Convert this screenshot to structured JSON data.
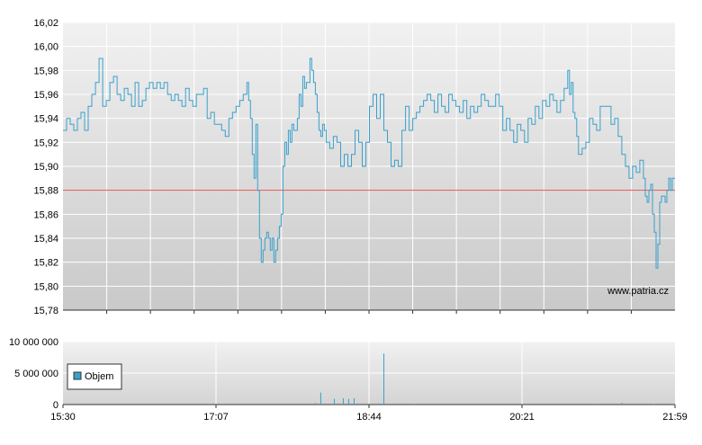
{
  "chart_data": [
    {
      "type": "line",
      "ylim": [
        15.78,
        16.02
      ],
      "y_ticks": [
        "16,02",
        "16,00",
        "15,98",
        "15,96",
        "15,94",
        "15,92",
        "15,90",
        "15,88",
        "15,86",
        "15,84",
        "15,82",
        "15,80",
        "15,78"
      ],
      "reference_line": {
        "value": 15.88,
        "color": "#e05050"
      },
      "line_color": "#3aa0cc",
      "watermark": "www.patria.cz",
      "grid": true,
      "series": [
        {
          "points": [
            [
              0,
              15.93
            ],
            [
              4,
              15.94
            ],
            [
              8,
              15.935
            ],
            [
              12,
              15.93
            ],
            [
              16,
              15.94
            ],
            [
              20,
              15.945
            ],
            [
              24,
              15.93
            ],
            [
              28,
              15.95
            ],
            [
              32,
              15.96
            ],
            [
              36,
              15.97
            ],
            [
              40,
              15.99
            ],
            [
              44,
              15.95
            ],
            [
              48,
              15.955
            ],
            [
              52,
              15.97
            ],
            [
              56,
              15.975
            ],
            [
              60,
              15.96
            ],
            [
              64,
              15.955
            ],
            [
              68,
              15.965
            ],
            [
              72,
              15.96
            ],
            [
              76,
              15.95
            ],
            [
              80,
              15.97
            ],
            [
              84,
              15.95
            ],
            [
              88,
              15.955
            ],
            [
              92,
              15.965
            ],
            [
              96,
              15.97
            ],
            [
              100,
              15.965
            ],
            [
              104,
              15.97
            ],
            [
              108,
              15.965
            ],
            [
              112,
              15.97
            ],
            [
              116,
              15.96
            ],
            [
              120,
              15.955
            ],
            [
              124,
              15.96
            ],
            [
              128,
              15.955
            ],
            [
              132,
              15.95
            ],
            [
              136,
              15.965
            ],
            [
              140,
              15.955
            ],
            [
              144,
              15.95
            ],
            [
              148,
              15.96
            ],
            [
              152,
              15.96
            ],
            [
              156,
              15.965
            ],
            [
              160,
              15.94
            ],
            [
              164,
              15.945
            ],
            [
              168,
              15.935
            ],
            [
              172,
              15.935
            ],
            [
              176,
              15.93
            ],
            [
              180,
              15.925
            ],
            [
              184,
              15.94
            ],
            [
              188,
              15.945
            ],
            [
              192,
              15.95
            ],
            [
              196,
              15.955
            ],
            [
              200,
              15.96
            ],
            [
              204,
              15.97
            ],
            [
              206,
              15.955
            ],
            [
              208,
              15.94
            ],
            [
              210,
              15.91
            ],
            [
              212,
              15.89
            ],
            [
              214,
              15.935
            ],
            [
              216,
              15.88
            ],
            [
              218,
              15.84
            ],
            [
              220,
              15.82
            ],
            [
              222,
              15.83
            ],
            [
              224,
              15.84
            ],
            [
              226,
              15.845
            ],
            [
              228,
              15.84
            ],
            [
              230,
              15.83
            ],
            [
              232,
              15.84
            ],
            [
              234,
              15.82
            ],
            [
              236,
              15.83
            ],
            [
              238,
              15.84
            ],
            [
              240,
              15.85
            ],
            [
              242,
              15.86
            ],
            [
              244,
              15.9
            ],
            [
              246,
              15.92
            ],
            [
              248,
              15.91
            ],
            [
              250,
              15.93
            ],
            [
              252,
              15.92
            ],
            [
              254,
              15.935
            ],
            [
              256,
              15.93
            ],
            [
              258,
              15.93
            ],
            [
              260,
              15.94
            ],
            [
              262,
              15.96
            ],
            [
              264,
              15.95
            ],
            [
              266,
              15.975
            ],
            [
              268,
              15.965
            ],
            [
              270,
              15.97
            ],
            [
              272,
              15.97
            ],
            [
              274,
              15.99
            ],
            [
              276,
              15.98
            ],
            [
              278,
              15.97
            ],
            [
              280,
              15.96
            ],
            [
              282,
              15.945
            ],
            [
              284,
              15.93
            ],
            [
              286,
              15.925
            ],
            [
              288,
              15.935
            ],
            [
              290,
              15.93
            ],
            [
              292,
              15.92
            ],
            [
              296,
              15.915
            ],
            [
              300,
              15.925
            ],
            [
              304,
              15.92
            ],
            [
              308,
              15.9
            ],
            [
              312,
              15.91
            ],
            [
              316,
              15.9
            ],
            [
              320,
              15.91
            ],
            [
              324,
              15.93
            ],
            [
              328,
              15.92
            ],
            [
              332,
              15.9
            ],
            [
              336,
              15.92
            ],
            [
              340,
              15.95
            ],
            [
              344,
              15.96
            ],
            [
              348,
              15.94
            ],
            [
              352,
              15.96
            ],
            [
              356,
              15.93
            ],
            [
              360,
              15.92
            ],
            [
              364,
              15.9
            ],
            [
              368,
              15.905
            ],
            [
              372,
              15.9
            ],
            [
              376,
              15.93
            ],
            [
              380,
              15.95
            ],
            [
              384,
              15.93
            ],
            [
              388,
              15.94
            ],
            [
              392,
              15.945
            ],
            [
              396,
              15.95
            ],
            [
              400,
              15.955
            ],
            [
              404,
              15.96
            ],
            [
              408,
              15.955
            ],
            [
              412,
              15.945
            ],
            [
              416,
              15.96
            ],
            [
              420,
              15.95
            ],
            [
              424,
              15.945
            ],
            [
              428,
              15.96
            ],
            [
              432,
              15.955
            ],
            [
              436,
              15.95
            ],
            [
              440,
              15.945
            ],
            [
              444,
              15.955
            ],
            [
              448,
              15.94
            ],
            [
              452,
              15.95
            ],
            [
              456,
              15.945
            ],
            [
              460,
              15.95
            ],
            [
              464,
              15.96
            ],
            [
              468,
              15.955
            ],
            [
              472,
              15.95
            ],
            [
              476,
              15.95
            ],
            [
              480,
              15.96
            ],
            [
              484,
              15.95
            ],
            [
              488,
              15.93
            ],
            [
              492,
              15.94
            ],
            [
              496,
              15.93
            ],
            [
              500,
              15.92
            ],
            [
              504,
              15.935
            ],
            [
              508,
              15.93
            ],
            [
              512,
              15.92
            ],
            [
              516,
              15.94
            ],
            [
              520,
              15.935
            ],
            [
              524,
              15.95
            ],
            [
              528,
              15.94
            ],
            [
              532,
              15.955
            ],
            [
              536,
              15.95
            ],
            [
              540,
              15.96
            ],
            [
              544,
              15.955
            ],
            [
              548,
              15.945
            ],
            [
              552,
              15.955
            ],
            [
              556,
              15.965
            ],
            [
              560,
              15.98
            ],
            [
              562,
              15.96
            ],
            [
              564,
              15.97
            ],
            [
              566,
              15.945
            ],
            [
              568,
              15.94
            ],
            [
              570,
              15.925
            ],
            [
              572,
              15.91
            ],
            [
              576,
              15.915
            ],
            [
              580,
              15.92
            ],
            [
              584,
              15.94
            ],
            [
              588,
              15.935
            ],
            [
              592,
              15.93
            ],
            [
              596,
              15.95
            ],
            [
              600,
              15.95
            ],
            [
              604,
              15.95
            ],
            [
              608,
              15.935
            ],
            [
              612,
              15.94
            ],
            [
              616,
              15.925
            ],
            [
              620,
              15.91
            ],
            [
              624,
              15.9
            ],
            [
              628,
              15.89
            ],
            [
              632,
              15.9
            ],
            [
              636,
              15.895
            ],
            [
              640,
              15.905
            ],
            [
              644,
              15.89
            ],
            [
              646,
              15.875
            ],
            [
              648,
              15.87
            ],
            [
              650,
              15.88
            ],
            [
              652,
              15.885
            ],
            [
              654,
              15.86
            ],
            [
              656,
              15.845
            ],
            [
              658,
              15.815
            ],
            [
              660,
              15.835
            ],
            [
              662,
              15.87
            ],
            [
              664,
              15.875
            ],
            [
              666,
              15.875
            ],
            [
              668,
              15.87
            ],
            [
              670,
              15.88
            ],
            [
              672,
              15.89
            ],
            [
              674,
              15.88
            ],
            [
              676,
              15.89
            ],
            [
              679,
              15.89
            ]
          ]
        }
      ]
    },
    {
      "type": "bar",
      "name": "Objem",
      "legend_label": "Objem",
      "ylim": [
        0,
        10000000
      ],
      "y_ticks": [
        "10 000 000",
        "5 000 000",
        "0"
      ],
      "x_ticks": [
        "15:30",
        "17:07",
        "18:44",
        "20:21",
        "21:59"
      ],
      "bar_color": "#3aa0cc",
      "grid": true,
      "series": [
        {
          "bars": [
            [
              255,
              150000
            ],
            [
              280,
              250000
            ],
            [
              286,
              1900000
            ],
            [
              301,
              900000
            ],
            [
              311,
              1000000
            ],
            [
              317,
              900000
            ],
            [
              323,
              1000000
            ],
            [
              356,
              8100000
            ],
            [
              390,
              120000
            ],
            [
              510,
              90000
            ],
            [
              590,
              110000
            ],
            [
              620,
              300000
            ],
            [
              635,
              150000
            ],
            [
              655,
              100000
            ]
          ]
        }
      ]
    }
  ]
}
